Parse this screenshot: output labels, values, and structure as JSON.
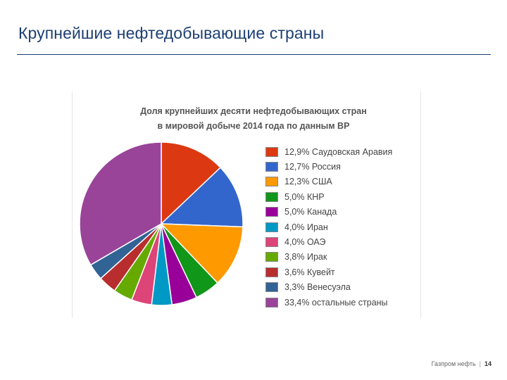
{
  "slide": {
    "title": "Крупнейшие нефтедобывающие страны",
    "footer_company": "Газпром нефть",
    "footer_separator": "|",
    "page_number": "14"
  },
  "chart_data": {
    "type": "pie",
    "title_lines": [
      "Доля крупнейших десяти нефтедобывающих стран",
      "в мировой добыче 2014 года по данным BP"
    ],
    "unit": "%",
    "slices": [
      {
        "value": 12.9,
        "label": "12,9% Саудовская Аравия",
        "color": "#dc3912"
      },
      {
        "value": 12.7,
        "label": "12,7% Россия",
        "color": "#3366cc"
      },
      {
        "value": 12.3,
        "label": "12,3% США",
        "color": "#ff9900"
      },
      {
        "value": 5.0,
        "label": "5,0% КНР",
        "color": "#109618"
      },
      {
        "value": 5.0,
        "label": "5,0% Канада",
        "color": "#990099"
      },
      {
        "value": 4.0,
        "label": "4,0% Иран",
        "color": "#0099c6"
      },
      {
        "value": 4.0,
        "label": "4,0% ОАЭ",
        "color": "#dd4477"
      },
      {
        "value": 3.8,
        "label": "3,8% Ирак",
        "color": "#66aa00"
      },
      {
        "value": 3.6,
        "label": "3,6% Кувейт",
        "color": "#b82e2e"
      },
      {
        "value": 3.3,
        "label": "3,3% Венесуэла",
        "color": "#316395"
      },
      {
        "value": 33.4,
        "label": "33,4% остальные страны",
        "color": "#994499"
      }
    ],
    "start_angle_deg": 0,
    "direction": "clockwise",
    "legend_position": "right"
  }
}
